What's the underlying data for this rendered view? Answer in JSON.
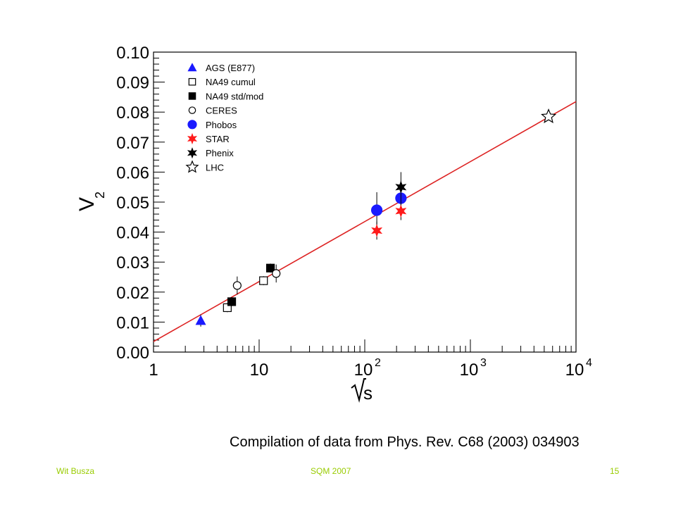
{
  "chart_data": {
    "type": "scatter",
    "xlabel": "√s",
    "ylabel": "V2",
    "xscale": "log",
    "xlim": [
      1,
      10000
    ],
    "ylim": [
      0,
      0.1
    ],
    "xticks": [
      "1",
      "10",
      "10^2",
      "10^3",
      "10^4"
    ],
    "yticks": [
      "0.00",
      "0.01",
      "0.02",
      "0.03",
      "0.04",
      "0.05",
      "0.06",
      "0.07",
      "0.08",
      "0.09",
      "0.10"
    ],
    "legend_position": "top-left",
    "fit_line": {
      "color": "#dd2222",
      "x": [
        1,
        10000
      ],
      "y": [
        0.0035,
        0.0835
      ]
    },
    "series": [
      {
        "name": "AGS (E877)",
        "marker": "triangle",
        "color": "#1a1aff",
        "filled": true,
        "points": [
          {
            "x": 2.8,
            "y": 0.0105,
            "err": 0.002
          }
        ]
      },
      {
        "name": "NA49 cumul",
        "marker": "square",
        "color": "#000000",
        "filled": false,
        "points": [
          {
            "x": 5.0,
            "y": 0.0148,
            "err": 0.0015
          },
          {
            "x": 11.0,
            "y": 0.0238,
            "err": 0.0015
          }
        ]
      },
      {
        "name": "NA49 std/mod",
        "marker": "square",
        "color": "#000000",
        "filled": true,
        "points": [
          {
            "x": 5.5,
            "y": 0.0168,
            "err": 0.0015
          },
          {
            "x": 12.8,
            "y": 0.028,
            "err": 0.0015
          }
        ]
      },
      {
        "name": "CERES",
        "marker": "circle",
        "color": "#000000",
        "filled": false,
        "points": [
          {
            "x": 6.2,
            "y": 0.0222,
            "err": 0.003
          },
          {
            "x": 14.5,
            "y": 0.0262,
            "err": 0.003
          }
        ]
      },
      {
        "name": "Phobos",
        "marker": "circle",
        "color": "#1a1aff",
        "filled": true,
        "points": [
          {
            "x": 130,
            "y": 0.0473,
            "err": 0.006
          },
          {
            "x": 220,
            "y": 0.0513,
            "err": 0.004
          }
        ]
      },
      {
        "name": "STAR",
        "marker": "star",
        "color": "#ff1a1a",
        "filled": true,
        "points": [
          {
            "x": 130,
            "y": 0.0405,
            "err": 0.003
          },
          {
            "x": 220,
            "y": 0.047,
            "err": 0.003
          }
        ]
      },
      {
        "name": "Phenix",
        "marker": "star",
        "color": "#000000",
        "filled": true,
        "points": [
          {
            "x": 220,
            "y": 0.055,
            "err": 0.005
          }
        ]
      },
      {
        "name": "LHC",
        "marker": "star",
        "color": "#000000",
        "filled": false,
        "points": [
          {
            "x": 5500,
            "y": 0.0785,
            "err": 0
          }
        ]
      }
    ]
  },
  "caption": "Compilation of data from Phys. Rev. C68 (2003) 034903",
  "footer": {
    "left": "Wit Busza",
    "center": "SQM 2007",
    "right": "15"
  }
}
